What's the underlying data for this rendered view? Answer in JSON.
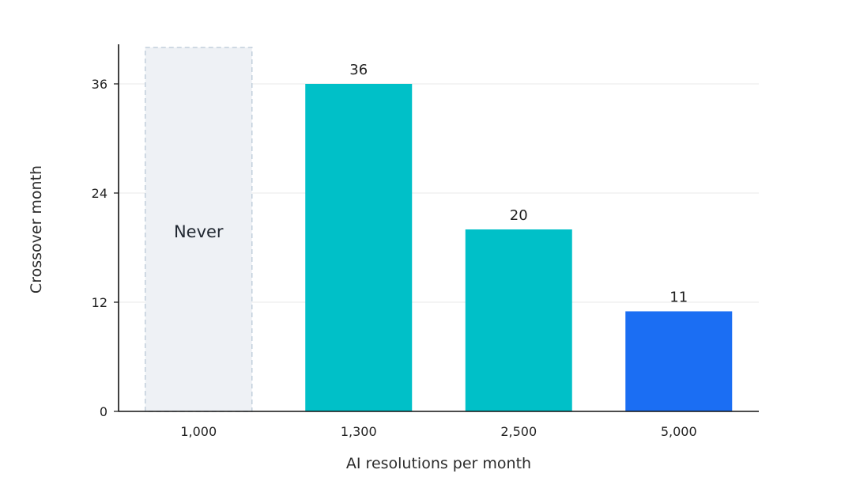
{
  "chart_data": {
    "type": "bar",
    "categories": [
      "1,000",
      "1,300",
      "2,500",
      "5,000"
    ],
    "values": [
      null,
      36,
      20,
      11
    ],
    "value_labels": [
      "",
      "36",
      "20",
      "11"
    ],
    "placeholder": {
      "category_index": 0,
      "label": "Never",
      "color": "#eef1f5",
      "border_color": "#c2cfdc"
    },
    "colors": [
      "#eef1f5",
      "#00c0c8",
      "#00c0c8",
      "#1b6ef3"
    ],
    "xlabel": "AI resolutions per month",
    "ylabel": "Crossover month",
    "ylim": [
      0,
      36
    ],
    "yticks": [
      0,
      12,
      24,
      36
    ],
    "ytick_labels": [
      "0",
      "12",
      "24",
      "36"
    ],
    "grid": true,
    "gridline_color": "#eeeeee",
    "axis_color": "#111111"
  }
}
